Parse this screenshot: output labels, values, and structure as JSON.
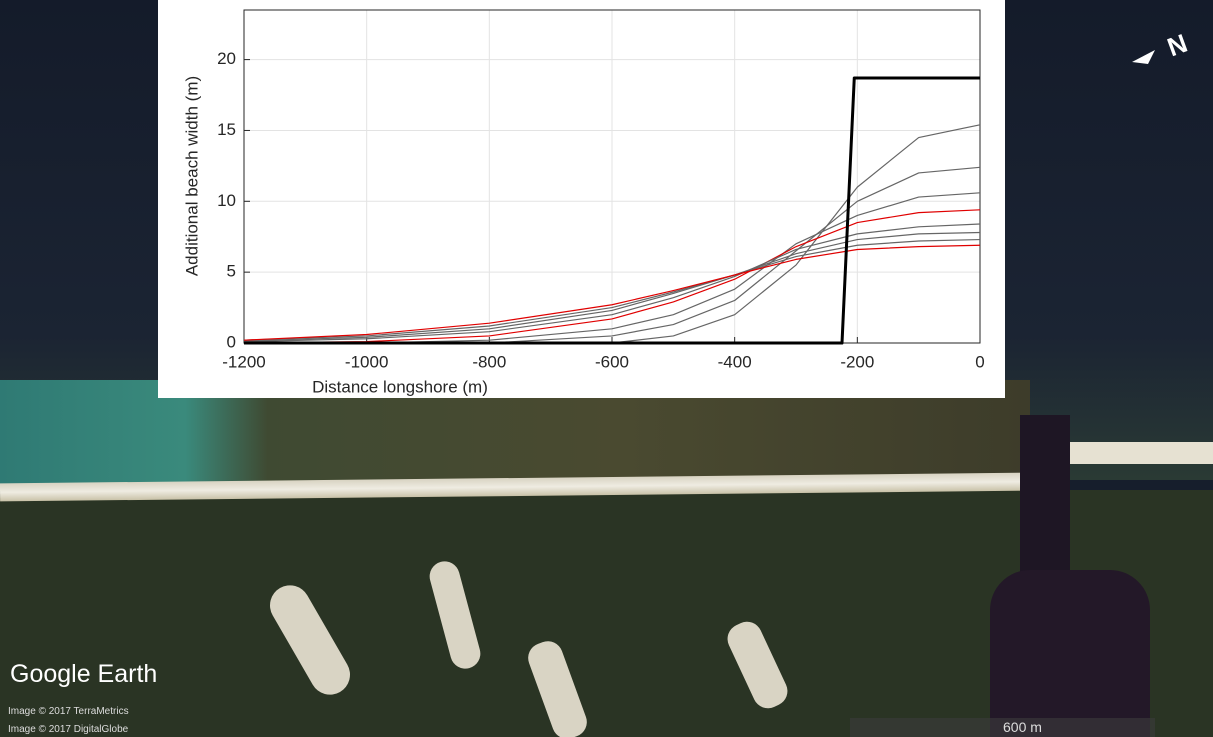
{
  "chart_data": {
    "type": "line",
    "xlabel": "Distance longshore  (m)",
    "ylabel": "Additional beach width (m)",
    "xlim": [
      -1200,
      0
    ],
    "ylim": [
      0,
      23.5
    ],
    "xticks": [
      -1200,
      -1000,
      -800,
      -600,
      -400,
      -200,
      0
    ],
    "yticks": [
      0,
      5,
      10,
      15,
      20
    ],
    "grid": true,
    "series": [
      {
        "color": "#666666",
        "x": [
          -1200,
          -1000,
          -800,
          -600,
          -500,
          -400,
          -300,
          -200,
          -100,
          0
        ],
        "values": [
          0,
          0,
          0,
          0,
          0.5,
          2,
          5.5,
          11,
          14.5,
          15.4
        ]
      },
      {
        "color": "#666666",
        "x": [
          -1200,
          -1000,
          -800,
          -600,
          -500,
          -400,
          -300,
          -200,
          -100,
          0
        ],
        "values": [
          0,
          0,
          0,
          0.5,
          1.3,
          3,
          6.5,
          10,
          12,
          12.4
        ]
      },
      {
        "color": "#666666",
        "x": [
          -1200,
          -1000,
          -800,
          -600,
          -500,
          -400,
          -300,
          -200,
          -100,
          0
        ],
        "values": [
          0,
          0,
          0.2,
          1,
          2,
          3.8,
          7,
          9,
          10.3,
          10.6
        ]
      },
      {
        "color": "#e00000",
        "x": [
          -1200,
          -1000,
          -800,
          -600,
          -500,
          -400,
          -300,
          -200,
          -100,
          0
        ],
        "values": [
          0,
          0.1,
          0.5,
          1.7,
          2.9,
          4.5,
          6.8,
          8.5,
          9.2,
          9.4
        ]
      },
      {
        "color": "#666666",
        "x": [
          -1200,
          -1000,
          -800,
          -600,
          -500,
          -400,
          -300,
          -200,
          -100,
          0
        ],
        "values": [
          0.1,
          0.3,
          0.8,
          2,
          3.2,
          4.7,
          6.6,
          7.7,
          8.2,
          8.4
        ]
      },
      {
        "color": "#666666",
        "x": [
          -1200,
          -1000,
          -800,
          -600,
          -500,
          -400,
          -300,
          -200,
          -100,
          0
        ],
        "values": [
          0.15,
          0.4,
          1,
          2.3,
          3.5,
          4.8,
          6.3,
          7.3,
          7.7,
          7.8
        ]
      },
      {
        "color": "#666666",
        "x": [
          -1200,
          -1000,
          -800,
          -600,
          -500,
          -400,
          -300,
          -200,
          -100,
          0
        ],
        "values": [
          0.2,
          0.5,
          1.2,
          2.5,
          3.6,
          4.8,
          6.1,
          6.9,
          7.2,
          7.3
        ]
      },
      {
        "color": "#e00000",
        "x": [
          -1200,
          -1000,
          -800,
          -600,
          -500,
          -400,
          -300,
          -200,
          -100,
          0
        ],
        "values": [
          0.2,
          0.6,
          1.4,
          2.7,
          3.7,
          4.8,
          5.9,
          6.6,
          6.8,
          6.9
        ]
      },
      {
        "color": "#000000",
        "x": [
          -1200,
          -225,
          -205,
          0
        ],
        "values": [
          0,
          0,
          18.7,
          18.7
        ]
      }
    ]
  },
  "overlay": {
    "brand": "Google Earth",
    "credit_1": "Image © 2017 TerraMetrics",
    "credit_2": "Image © 2017 DigitalGlobe",
    "scale": "600 m",
    "compass": "N"
  }
}
